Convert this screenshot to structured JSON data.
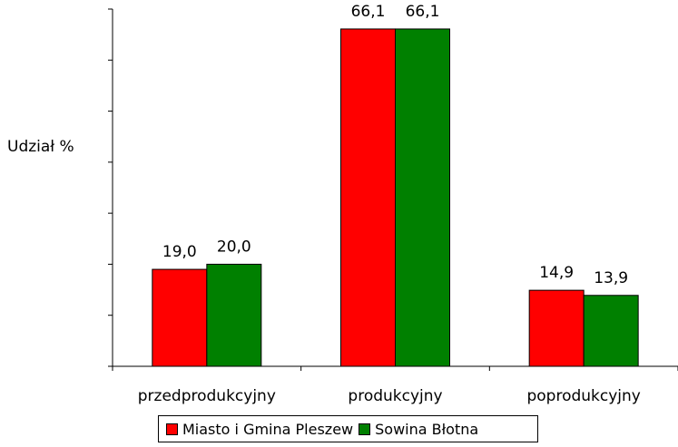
{
  "chart_data": {
    "type": "bar",
    "ylabel": "Udział %",
    "categories": [
      "przedprodukcyjny",
      "produkcyjny",
      "poprodukcyjny"
    ],
    "series": [
      {
        "name": "Miasto i Gmina Pleszew",
        "color": "#ff0000",
        "values": [
          19.0,
          66.1,
          14.9
        ],
        "labels": [
          "19,0",
          "66,1",
          "14,9"
        ]
      },
      {
        "name": "Sowina Błotna",
        "color": "#008000",
        "values": [
          20.0,
          66.1,
          13.9
        ],
        "labels": [
          "20,0",
          "66,1",
          "13,9"
        ]
      }
    ],
    "ylim": [
      0,
      70
    ],
    "grid": false,
    "legend_position": "bottom"
  }
}
